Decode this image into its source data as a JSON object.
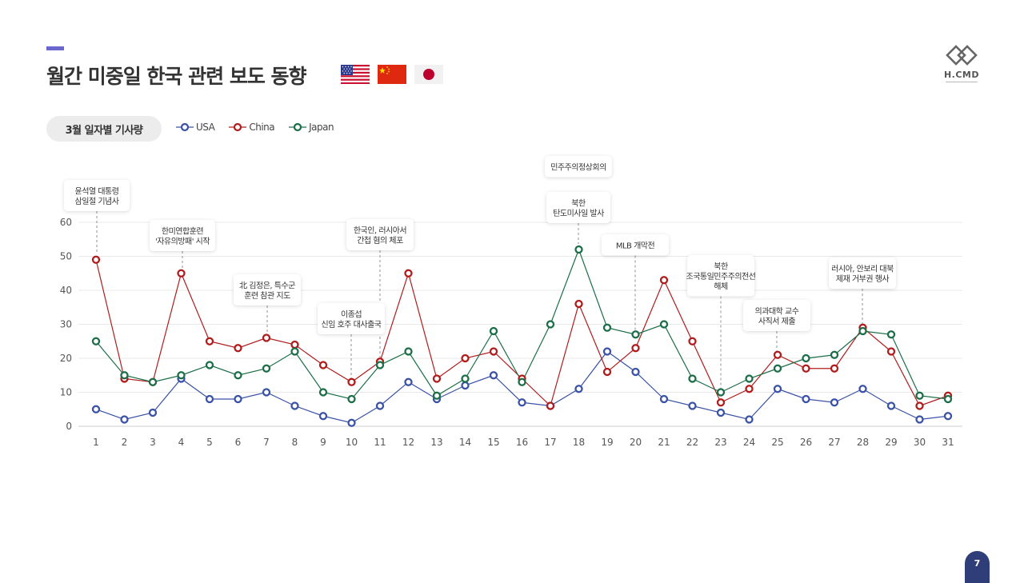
{
  "header": {
    "title": "월간 미중일 한국 관련 보도 동향",
    "flags": [
      "us-flag",
      "china-flag",
      "japan-flag"
    ]
  },
  "logo": {
    "text": "H.CMD"
  },
  "section_label": "3월 일자별 기사량",
  "page_number": "7",
  "colors": {
    "usa": "#3a52a6",
    "china": "#b01c1c",
    "japan": "#1b6e48",
    "accent": "#6b66cc"
  },
  "chart_data": {
    "type": "line",
    "title": "",
    "xlabel": "",
    "ylabel": "",
    "x": [
      1,
      2,
      3,
      4,
      5,
      6,
      7,
      8,
      9,
      10,
      11,
      12,
      13,
      14,
      15,
      16,
      17,
      18,
      19,
      20,
      21,
      22,
      23,
      24,
      25,
      26,
      27,
      28,
      29,
      30,
      31
    ],
    "ylim": [
      0,
      60
    ],
    "yticks": [
      0,
      10,
      20,
      30,
      40,
      50,
      60
    ],
    "grid": true,
    "legend_position": "top-left",
    "series": [
      {
        "name": "USA",
        "color": "#3a52a6",
        "values": [
          5,
          2,
          4,
          14,
          8,
          8,
          10,
          6,
          3,
          1,
          6,
          13,
          8,
          12,
          15,
          7,
          6,
          11,
          22,
          16,
          8,
          6,
          4,
          2,
          11,
          8,
          7,
          11,
          6,
          2,
          3
        ]
      },
      {
        "name": "China",
        "color": "#b01c1c",
        "values": [
          49,
          14,
          13,
          45,
          25,
          23,
          26,
          24,
          18,
          13,
          19,
          45,
          14,
          20,
          22,
          14,
          6,
          36,
          16,
          23,
          43,
          25,
          7,
          11,
          21,
          17,
          17,
          29,
          22,
          6,
          9
        ]
      },
      {
        "name": "Japan",
        "color": "#1b6e48",
        "values": [
          25,
          15,
          13,
          15,
          18,
          15,
          17,
          22,
          10,
          8,
          18,
          22,
          9,
          14,
          28,
          13,
          30,
          52,
          29,
          27,
          30,
          14,
          10,
          14,
          17,
          20,
          21,
          28,
          27,
          9,
          8
        ]
      }
    ],
    "annotations": [
      {
        "x": 1,
        "lines": [
          "윤석열 대통령",
          "삼일절 기념사"
        ]
      },
      {
        "x": 4,
        "lines": [
          "한미연합훈련",
          "'자유의방패' 시작"
        ]
      },
      {
        "x": 7,
        "lines": [
          "北 김정은, 특수군",
          "훈련 참관 지도"
        ]
      },
      {
        "x": 10,
        "lines": [
          "이종섭",
          "신임 호주 대사출국"
        ]
      },
      {
        "x": 11,
        "lines": [
          "한국인, 러시아서",
          "간첩 혐의 체포"
        ]
      },
      {
        "x": 18,
        "lines": [
          "민주주의정상회의"
        ]
      },
      {
        "x": 18,
        "lines": [
          "북한",
          "탄도미사일 발사"
        ]
      },
      {
        "x": 20,
        "lines": [
          "MLB 개막전"
        ]
      },
      {
        "x": 23,
        "lines": [
          "북한",
          "조국통일민주주의전선",
          "해체"
        ]
      },
      {
        "x": 25,
        "lines": [
          "의과대학 교수",
          "사직서 제출"
        ]
      },
      {
        "x": 28,
        "lines": [
          "러시아, 안보리 대북",
          "제재 거부권 행사"
        ]
      }
    ]
  }
}
